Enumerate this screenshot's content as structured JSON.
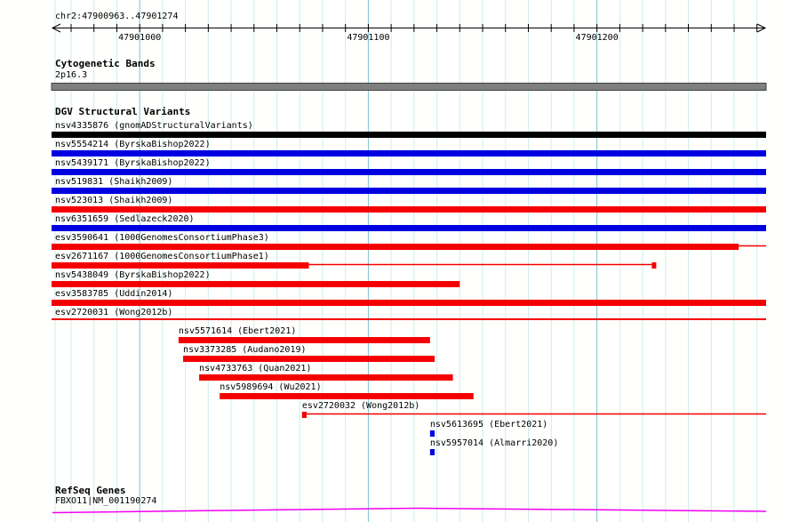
{
  "header": {
    "region_label": "chr2:47900963..47901274"
  },
  "sections": {
    "cytogenetic": {
      "title": "Cytogenetic Bands",
      "band_label": "2p16.3"
    },
    "dgv": {
      "title": "DGV Structural Variants"
    },
    "refseq": {
      "title": "RefSeq Genes",
      "gene_label": "FBXO11|NM_001190274"
    }
  },
  "colors": {
    "background": "#fffffd",
    "grid_minor": "#cbeef0",
    "grid_major": "#7cc2d2",
    "ruler": "#000000",
    "text": "#000000",
    "band_fill": "#7f7f7f",
    "band_border": "#404040",
    "variant_black": "#000000",
    "variant_blue": "#0000e0",
    "variant_red": "#f50000",
    "gene": "#f000f0"
  },
  "chart_data": {
    "type": "genome-browser-tracks",
    "region": {
      "chromosome": "chr2",
      "start": 47900963,
      "end": 47901274
    },
    "ruler": {
      "minor_step_bp": 10,
      "major_ticks": [
        {
          "bp": 47901000,
          "label": "47901000"
        },
        {
          "bp": 47901100,
          "label": "47901100"
        },
        {
          "bp": 47901200,
          "label": "47901200"
        }
      ]
    },
    "cytogenetic_band": {
      "name": "2p16.3"
    },
    "dgv_variants": [
      {
        "id": "nsv4335876",
        "study": "gnomADStructuralVariants",
        "color": "black",
        "shape": "bar",
        "start": 47900963,
        "end": 47901274,
        "label_at": "margin"
      },
      {
        "id": "nsv5554214",
        "study": "ByrskaBishop2022",
        "color": "blue",
        "shape": "bar",
        "start": 47900963,
        "end": 47901274,
        "label_at": "margin"
      },
      {
        "id": "nsv5439171",
        "study": "ByrskaBishop2022",
        "color": "blue",
        "shape": "bar",
        "start": 47900963,
        "end": 47901274,
        "label_at": "margin"
      },
      {
        "id": "nsv519831",
        "study": "Shaikh2009",
        "color": "blue",
        "shape": "bar",
        "start": 47900963,
        "end": 47901274,
        "label_at": "margin"
      },
      {
        "id": "nsv523013",
        "study": "Shaikh2009",
        "color": "red",
        "shape": "bar",
        "start": 47900963,
        "end": 47901274,
        "label_at": "margin"
      },
      {
        "id": "nsv6351659",
        "study": "Sedlazeck2020",
        "color": "blue",
        "shape": "bar",
        "start": 47900963,
        "end": 47901274,
        "label_at": "margin"
      },
      {
        "id": "esv3590641",
        "study": "1000GenomesConsortiumPhase3",
        "color": "red",
        "shape": "bar-line",
        "start": 47900963,
        "end": 47901262,
        "line_end": 47901274,
        "label_at": "margin"
      },
      {
        "id": "esv2671167",
        "study": "1000GenomesConsortiumPhase1",
        "color": "red",
        "shape": "bar-line-box",
        "start": 47900963,
        "end": 47901074,
        "line_end": 47901224,
        "label_at": "margin"
      },
      {
        "id": "nsv5438049",
        "study": "ByrskaBishop2022",
        "color": "red",
        "shape": "bar",
        "start": 47900963,
        "end": 47901140,
        "label_at": "margin"
      },
      {
        "id": "esv3583785",
        "study": "Uddin2014",
        "color": "red",
        "shape": "bar",
        "start": 47900963,
        "end": 47901274,
        "label_at": "margin"
      },
      {
        "id": "esv2720031",
        "study": "Wong2012b",
        "color": "red",
        "shape": "line",
        "start": 47900963,
        "end": 47901274,
        "label_at": "margin"
      },
      {
        "id": "nsv5571614",
        "study": "Ebert2021",
        "color": "red",
        "shape": "bar",
        "start": 47901017,
        "end": 47901127,
        "label_at": "feature"
      },
      {
        "id": "nsv3373285",
        "study": "Audano2019",
        "color": "red",
        "shape": "bar",
        "start": 47901019,
        "end": 47901129,
        "label_at": "feature"
      },
      {
        "id": "nsv4733763",
        "study": "Quan2021",
        "color": "red",
        "shape": "bar",
        "start": 47901026,
        "end": 47901137,
        "label_at": "feature"
      },
      {
        "id": "nsv5989694",
        "study": "Wu2021",
        "color": "red",
        "shape": "bar",
        "start": 47901035,
        "end": 47901146,
        "label_at": "feature"
      },
      {
        "id": "esv2720032",
        "study": "Wong2012b",
        "color": "red",
        "shape": "box-line",
        "start": 47901071,
        "end": 47901073,
        "line_end": 47901274,
        "label_at": "feature"
      },
      {
        "id": "nsv5613695",
        "study": "Ebert2021",
        "color": "blue",
        "shape": "box",
        "start": 47901127,
        "end": 47901129,
        "label_at": "feature"
      },
      {
        "id": "nsv5957014",
        "study": "Almarri2020",
        "color": "blue",
        "shape": "box",
        "start": 47901127,
        "end": 47901129,
        "label_at": "feature"
      }
    ],
    "refseq_genes": [
      {
        "name": "FBXO11",
        "transcript": "NM_001190274",
        "label": "FBXO11|NM_001190274"
      }
    ]
  }
}
